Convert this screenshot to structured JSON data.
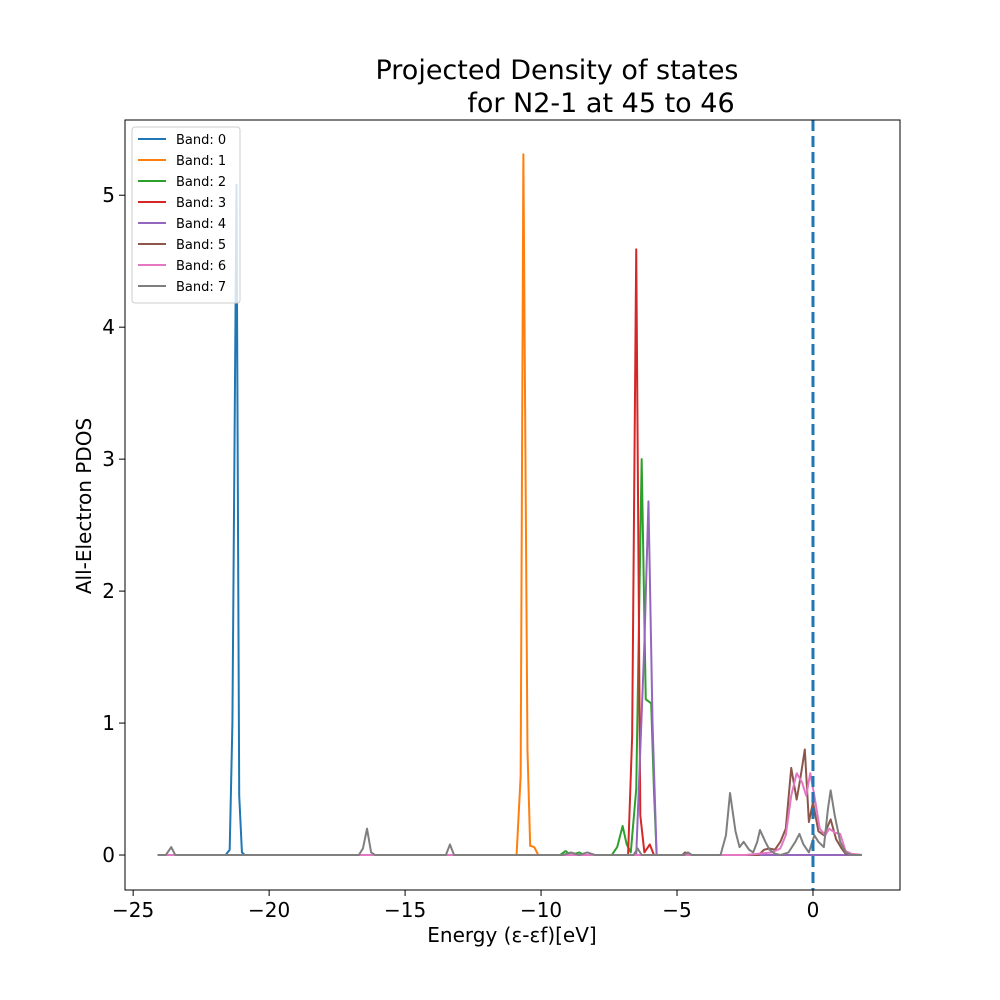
{
  "chart_data": {
    "type": "line",
    "title_lines": [
      "Projected Density of states",
      "for N2-1 at 45 to 46"
    ],
    "xlabel": "Energy (ε-εf)[eV]",
    "ylabel": "All-Electron PDOS",
    "xlim": [
      -25.3,
      3.2
    ],
    "ylim": [
      -0.265,
      5.57
    ],
    "xticks": [
      -25,
      -20,
      -15,
      -10,
      -5,
      0
    ],
    "yticks": [
      0,
      1,
      2,
      3,
      4,
      5
    ],
    "grid": false,
    "legend_position": "upper-left",
    "fermi_line": {
      "x": 0,
      "color": "#1f77b4",
      "style": "dashed"
    },
    "series": [
      {
        "name": "Band: 0",
        "color": "#1f77b4",
        "points": [
          [
            -24.1,
            0
          ],
          [
            -21.6,
            0
          ],
          [
            -21.45,
            0.04
          ],
          [
            -21.35,
            1.0
          ],
          [
            -21.2,
            5.08
          ],
          [
            -21.1,
            0.45
          ],
          [
            -21.0,
            0.02
          ],
          [
            -20.9,
            0
          ],
          [
            1.8,
            0
          ]
        ]
      },
      {
        "name": "Band: 1",
        "color": "#ff7f0e",
        "points": [
          [
            -24.1,
            0
          ],
          [
            -10.9,
            0
          ],
          [
            -10.75,
            0.6
          ],
          [
            -10.65,
            5.31
          ],
          [
            -10.5,
            0.8
          ],
          [
            -10.4,
            0.07
          ],
          [
            -10.25,
            0.06
          ],
          [
            -10.1,
            0
          ],
          [
            1.8,
            0
          ]
        ]
      },
      {
        "name": "Band: 2",
        "color": "#2ca02c",
        "points": [
          [
            -24.1,
            0
          ],
          [
            -9.3,
            0
          ],
          [
            -9.1,
            0.03
          ],
          [
            -8.9,
            0
          ],
          [
            -8.6,
            0.02
          ],
          [
            -8.4,
            0
          ],
          [
            -7.4,
            0
          ],
          [
            -7.2,
            0.06
          ],
          [
            -7.0,
            0.22
          ],
          [
            -6.85,
            0.08
          ],
          [
            -6.7,
            0.02
          ],
          [
            -6.5,
            0.5
          ],
          [
            -6.3,
            3.0
          ],
          [
            -6.15,
            1.18
          ],
          [
            -5.95,
            1.15
          ],
          [
            -5.85,
            0.5
          ],
          [
            -5.75,
            0
          ],
          [
            1.8,
            0
          ]
        ]
      },
      {
        "name": "Band: 3",
        "color": "#d62728",
        "points": [
          [
            -24.1,
            0
          ],
          [
            -7.2,
            0
          ],
          [
            -6.8,
            0
          ],
          [
            -6.65,
            0.9
          ],
          [
            -6.5,
            4.59
          ],
          [
            -6.35,
            0.3
          ],
          [
            -6.2,
            0.02
          ],
          [
            -6.0,
            0.08
          ],
          [
            -5.85,
            0
          ],
          [
            1.8,
            0
          ]
        ]
      },
      {
        "name": "Band: 4",
        "color": "#9467bd",
        "points": [
          [
            -24.1,
            0
          ],
          [
            -6.5,
            0
          ],
          [
            -6.35,
            0.8
          ],
          [
            -6.2,
            1.6
          ],
          [
            -6.05,
            2.68
          ],
          [
            -5.9,
            1.0
          ],
          [
            -5.75,
            0
          ],
          [
            1.8,
            0
          ]
        ]
      },
      {
        "name": "Band: 5",
        "color": "#8c564b",
        "points": [
          [
            -24.1,
            0
          ],
          [
            -4.8,
            0
          ],
          [
            -4.7,
            0.02
          ],
          [
            -4.55,
            0
          ],
          [
            -2.0,
            0
          ],
          [
            -1.8,
            0.04
          ],
          [
            -1.6,
            0.05
          ],
          [
            -1.4,
            0.04
          ],
          [
            -1.2,
            0.1
          ],
          [
            -1.0,
            0.2
          ],
          [
            -0.8,
            0.66
          ],
          [
            -0.6,
            0.42
          ],
          [
            -0.45,
            0.6
          ],
          [
            -0.3,
            0.8
          ],
          [
            -0.15,
            0.25
          ],
          [
            0,
            0.4
          ],
          [
            0.2,
            0.18
          ],
          [
            0.4,
            0.15
          ],
          [
            0.65,
            0.27
          ],
          [
            0.85,
            0.12
          ],
          [
            1.05,
            0.05
          ],
          [
            1.2,
            0.01
          ],
          [
            1.8,
            0
          ]
        ]
      },
      {
        "name": "Band: 6",
        "color": "#e377c2",
        "points": [
          [
            -24.1,
            0
          ],
          [
            -2.5,
            0
          ],
          [
            -2.0,
            0.01
          ],
          [
            -1.5,
            0.02
          ],
          [
            -1.2,
            0.05
          ],
          [
            -1.0,
            0.15
          ],
          [
            -0.8,
            0.45
          ],
          [
            -0.6,
            0.62
          ],
          [
            -0.4,
            0.55
          ],
          [
            -0.25,
            0.45
          ],
          [
            -0.1,
            0.62
          ],
          [
            0.05,
            0.45
          ],
          [
            0.25,
            0.2
          ],
          [
            0.45,
            0.15
          ],
          [
            0.6,
            0.2
          ],
          [
            0.8,
            0.17
          ],
          [
            1.0,
            0.16
          ],
          [
            1.2,
            0.03
          ],
          [
            1.4,
            0.01
          ],
          [
            1.8,
            0
          ]
        ]
      },
      {
        "name": "Band: 7",
        "color": "#7f7f7f",
        "points": [
          [
            -24.1,
            0
          ],
          [
            -23.8,
            0
          ],
          [
            -23.6,
            0.06
          ],
          [
            -23.45,
            0
          ],
          [
            -16.7,
            0
          ],
          [
            -16.55,
            0.05
          ],
          [
            -16.4,
            0.2
          ],
          [
            -16.25,
            0.02
          ],
          [
            -16.1,
            0
          ],
          [
            -13.5,
            0
          ],
          [
            -13.35,
            0.08
          ],
          [
            -13.2,
            0
          ],
          [
            -9.2,
            0
          ],
          [
            -8.9,
            0.02
          ],
          [
            -8.6,
            0
          ],
          [
            -8.3,
            0.02
          ],
          [
            -8.0,
            0
          ],
          [
            -6.6,
            0
          ],
          [
            -6.45,
            0.05
          ],
          [
            -6.3,
            0
          ],
          [
            -4.75,
            0
          ],
          [
            -4.6,
            0.02
          ],
          [
            -4.45,
            0
          ],
          [
            -3.4,
            0
          ],
          [
            -3.2,
            0.15
          ],
          [
            -3.05,
            0.47
          ],
          [
            -2.85,
            0.18
          ],
          [
            -2.7,
            0.06
          ],
          [
            -2.55,
            0.1
          ],
          [
            -2.35,
            0.04
          ],
          [
            -2.2,
            0.02
          ],
          [
            -2.05,
            0.1
          ],
          [
            -1.95,
            0.19
          ],
          [
            -1.75,
            0.1
          ],
          [
            -1.6,
            0.04
          ],
          [
            -1.4,
            0.01
          ],
          [
            -1.2,
            0
          ],
          [
            -0.9,
            0.02
          ],
          [
            -0.65,
            0.1
          ],
          [
            -0.5,
            0.16
          ],
          [
            -0.35,
            0.08
          ],
          [
            -0.15,
            0.02
          ],
          [
            0.05,
            0.15
          ],
          [
            0.2,
            0.1
          ],
          [
            0.4,
            0.06
          ],
          [
            0.55,
            0.35
          ],
          [
            0.65,
            0.49
          ],
          [
            0.8,
            0.3
          ],
          [
            1.0,
            0.1
          ],
          [
            1.2,
            0.02
          ],
          [
            1.4,
            0
          ],
          [
            1.8,
            0
          ]
        ]
      }
    ]
  }
}
